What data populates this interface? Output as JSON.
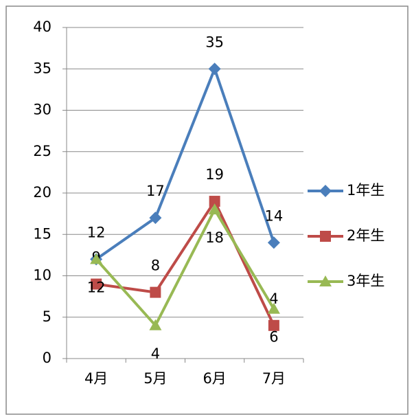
{
  "chart_data": {
    "type": "line",
    "categories": [
      "4月",
      "5月",
      "6月",
      "7月"
    ],
    "series": [
      {
        "name": "1年生",
        "color": "#4a7ebb",
        "marker": "diamond",
        "label_position": "above",
        "values": [
          12,
          17,
          35,
          14
        ]
      },
      {
        "name": "2年生",
        "color": "#be4b48",
        "marker": "square",
        "label_position": "above",
        "values": [
          9,
          8,
          19,
          4
        ]
      },
      {
        "name": "3年生",
        "color": "#98b954",
        "marker": "triangle",
        "label_position": "below",
        "values": [
          12,
          4,
          18,
          6
        ]
      }
    ],
    "ylim": [
      0,
      40
    ],
    "yticks": [
      0,
      5,
      10,
      15,
      20,
      25,
      30,
      35,
      40
    ],
    "grid": true,
    "legend": "right"
  }
}
